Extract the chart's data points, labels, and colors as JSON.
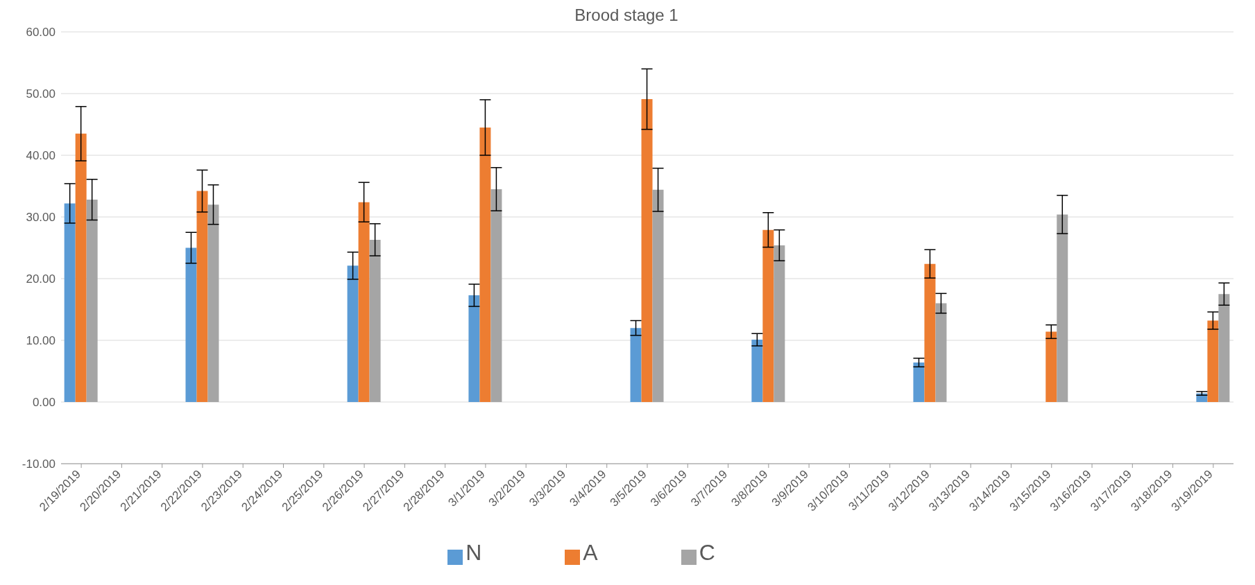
{
  "chart_data": {
    "type": "bar",
    "title": "Brood stage 1",
    "categories": [
      "2/19/2019",
      "2/20/2019",
      "2/21/2019",
      "2/22/2019",
      "2/23/2019",
      "2/24/2019",
      "2/25/2019",
      "2/26/2019",
      "2/27/2019",
      "2/28/2019",
      "3/1/2019",
      "3/2/2019",
      "3/3/2019",
      "3/4/2019",
      "3/5/2019",
      "3/6/2019",
      "3/7/2019",
      "3/8/2019",
      "3/9/2019",
      "3/10/2019",
      "3/11/2019",
      "3/12/2019",
      "3/13/2019",
      "3/14/2019",
      "3/15/2019",
      "3/16/2019",
      "3/17/2019",
      "3/18/2019",
      "3/19/2019"
    ],
    "series": [
      {
        "name": "N",
        "color": "#5b9bd5",
        "values": [
          32.2,
          null,
          null,
          25.0,
          null,
          null,
          null,
          22.1,
          null,
          null,
          17.3,
          null,
          null,
          null,
          12.0,
          null,
          null,
          10.1,
          null,
          null,
          null,
          6.4,
          null,
          null,
          0,
          null,
          null,
          null,
          1.4
        ],
        "errors": [
          3.2,
          null,
          null,
          2.5,
          null,
          null,
          null,
          2.2,
          null,
          null,
          1.8,
          null,
          null,
          null,
          1.2,
          null,
          null,
          1.0,
          null,
          null,
          null,
          0.7,
          null,
          null,
          null,
          null,
          null,
          null,
          0.3
        ]
      },
      {
        "name": "A",
        "color": "#ed7d31",
        "values": [
          43.5,
          null,
          null,
          34.2,
          null,
          null,
          null,
          32.4,
          null,
          null,
          44.5,
          null,
          null,
          null,
          49.1,
          null,
          null,
          27.9,
          null,
          null,
          null,
          22.4,
          null,
          null,
          11.4,
          null,
          null,
          null,
          13.2
        ],
        "errors": [
          4.4,
          null,
          null,
          3.4,
          null,
          null,
          null,
          3.2,
          null,
          null,
          4.5,
          null,
          null,
          null,
          4.9,
          null,
          null,
          2.8,
          null,
          null,
          null,
          2.3,
          null,
          null,
          1.1,
          null,
          null,
          null,
          1.4
        ]
      },
      {
        "name": "C",
        "color": "#a5a5a5",
        "values": [
          32.8,
          null,
          null,
          32.0,
          null,
          null,
          null,
          26.3,
          null,
          null,
          34.5,
          null,
          null,
          null,
          34.4,
          null,
          null,
          25.4,
          null,
          null,
          null,
          16.0,
          null,
          null,
          30.4,
          null,
          null,
          null,
          17.5
        ],
        "errors": [
          3.3,
          null,
          null,
          3.2,
          null,
          null,
          null,
          2.6,
          null,
          null,
          3.5,
          null,
          null,
          null,
          3.5,
          null,
          null,
          2.5,
          null,
          null,
          null,
          1.6,
          null,
          null,
          3.1,
          null,
          null,
          null,
          1.8
        ]
      }
    ],
    "ylim": [
      -10,
      60
    ],
    "yticks": [
      {
        "value": -10,
        "label": "-10.00"
      },
      {
        "value": 0,
        "label": "0.00"
      },
      {
        "value": 10,
        "label": "10.00"
      },
      {
        "value": 20,
        "label": "20.00"
      },
      {
        "value": 30,
        "label": "30.00"
      },
      {
        "value": 40,
        "label": "40.00"
      },
      {
        "value": 50,
        "label": "50.00"
      },
      {
        "value": 60,
        "label": "60.00"
      }
    ],
    "grid": "y",
    "legend": "bottom"
  }
}
